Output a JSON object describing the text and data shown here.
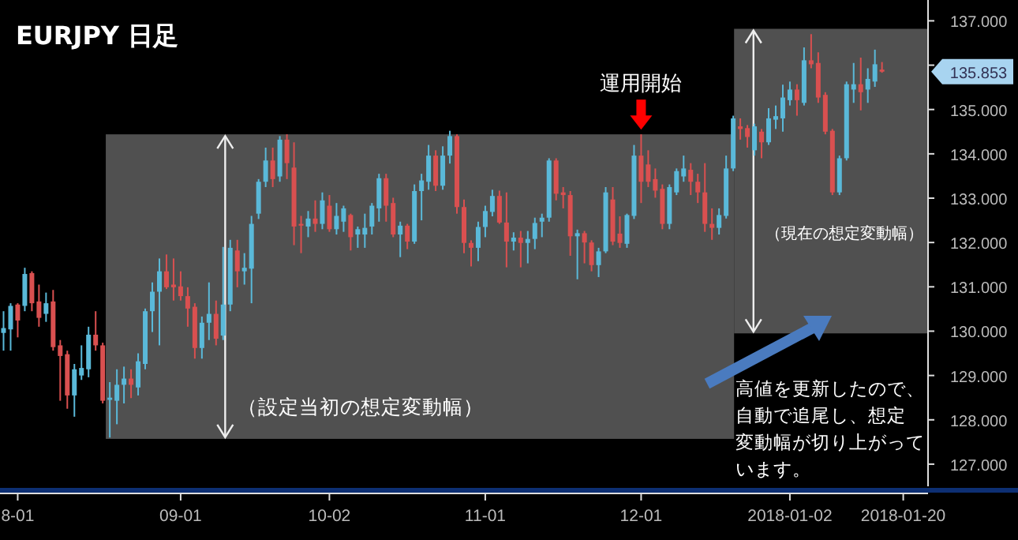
{
  "chart_data": {
    "type": "candlestick",
    "title": "EURJPY 日足",
    "categories": [
      null,
      null,
      "8-01",
      null,
      null,
      null,
      null,
      null,
      null,
      null,
      null,
      null,
      null,
      null,
      null,
      null,
      null,
      null,
      null,
      null,
      null,
      null,
      null,
      null,
      null,
      "09-01",
      null,
      null,
      null,
      null,
      null,
      null,
      null,
      null,
      null,
      null,
      null,
      null,
      null,
      null,
      null,
      null,
      null,
      null,
      null,
      null,
      "10-02",
      null,
      null,
      null,
      null,
      null,
      null,
      null,
      null,
      null,
      null,
      null,
      null,
      null,
      null,
      null,
      null,
      null,
      null,
      null,
      null,
      null,
      "11-01",
      null,
      null,
      null,
      null,
      null,
      null,
      null,
      null,
      null,
      null,
      null,
      null,
      null,
      null,
      null,
      null,
      null,
      null,
      null,
      null,
      null,
      "12-01",
      null,
      null,
      null,
      null,
      null,
      null,
      null,
      null,
      null,
      null,
      null,
      null,
      null,
      null,
      null,
      null,
      null,
      null,
      null,
      null,
      "2018-01-02",
      null,
      null,
      null,
      null,
      null,
      null,
      null,
      null,
      null,
      null,
      null,
      null,
      null,
      null,
      null,
      "2018-01-20",
      null,
      null,
      null
    ],
    "ohlc": [
      [
        129.96,
        130.45,
        129.56,
        130.07
      ],
      [
        130.04,
        130.63,
        129.56,
        130.57
      ],
      [
        130.6,
        130.63,
        129.86,
        130.24
      ],
      [
        130.57,
        131.43,
        130.45,
        131.29
      ],
      [
        131.31,
        131.35,
        130.45,
        130.63
      ],
      [
        130.67,
        131.05,
        130.1,
        130.3
      ],
      [
        130.39,
        130.87,
        130.21,
        130.63
      ],
      [
        130.67,
        130.93,
        129.56,
        129.64
      ],
      [
        129.68,
        129.8,
        128.43,
        129.44
      ],
      [
        129.48,
        129.56,
        128.25,
        128.55
      ],
      [
        128.55,
        129.26,
        128.07,
        129.14
      ],
      [
        129.0,
        129.68,
        128.9,
        129.17
      ],
      [
        129.14,
        130.1,
        128.96,
        129.92
      ],
      [
        129.92,
        130.45,
        129.56,
        129.68
      ],
      [
        129.68,
        129.74,
        128.37,
        128.43
      ],
      [
        128.45,
        128.85,
        127.6,
        128.5
      ],
      [
        128.43,
        129.14,
        127.9,
        128.79
      ],
      [
        128.79,
        129.2,
        128.37,
        128.93
      ],
      [
        128.93,
        129.14,
        128.49,
        128.79
      ],
      [
        128.73,
        129.5,
        128.55,
        129.32
      ],
      [
        129.26,
        130.51,
        129.14,
        130.45
      ],
      [
        130.45,
        131.1,
        129.98,
        130.89
      ],
      [
        130.89,
        131.64,
        129.68,
        131.35
      ],
      [
        131.35,
        131.73,
        130.95,
        130.99
      ],
      [
        131.05,
        131.64,
        130.69,
        130.99
      ],
      [
        131.01,
        131.35,
        130.69,
        130.79
      ],
      [
        130.79,
        130.99,
        130.1,
        130.51
      ],
      [
        130.55,
        130.63,
        129.38,
        129.62
      ],
      [
        129.62,
        130.33,
        129.38,
        130.19
      ],
      [
        130.19,
        131.1,
        129.8,
        130.39
      ],
      [
        130.39,
        130.69,
        129.68,
        129.83
      ],
      [
        129.9,
        131.9,
        129.8,
        130.6
      ],
      [
        130.6,
        132.06,
        130.45,
        131.88
      ],
      [
        131.82,
        132.06,
        130.99,
        131.35
      ],
      [
        131.35,
        131.76,
        131.05,
        131.43
      ],
      [
        131.41,
        132.6,
        130.63,
        132.42
      ],
      [
        132.65,
        133.43,
        132.53,
        133.37
      ],
      [
        133.37,
        134.14,
        133.25,
        133.85
      ],
      [
        133.85,
        134.14,
        133.25,
        133.43
      ],
      [
        133.49,
        134.4,
        133.37,
        134.32
      ],
      [
        134.32,
        134.44,
        133.43,
        133.79
      ],
      [
        133.69,
        134.26,
        131.94,
        132.36
      ],
      [
        132.42,
        132.6,
        131.76,
        132.38
      ],
      [
        132.36,
        132.71,
        132.12,
        132.54
      ],
      [
        132.54,
        132.95,
        132.24,
        132.42
      ],
      [
        132.42,
        133.13,
        132.3,
        132.95
      ],
      [
        132.83,
        133.07,
        132.24,
        132.3
      ],
      [
        132.3,
        132.89,
        132.18,
        132.6
      ],
      [
        132.47,
        132.83,
        132.24,
        132.77
      ],
      [
        132.62,
        132.65,
        131.82,
        132.12
      ],
      [
        132.18,
        132.36,
        131.88,
        132.3
      ],
      [
        132.18,
        132.65,
        131.88,
        132.33
      ],
      [
        132.36,
        132.89,
        132.18,
        132.83
      ],
      [
        132.77,
        133.55,
        132.47,
        133.45
      ],
      [
        133.45,
        133.55,
        132.47,
        132.83
      ],
      [
        132.89,
        133.01,
        132.12,
        132.18
      ],
      [
        132.18,
        132.47,
        131.67,
        132.38
      ],
      [
        132.38,
        132.42,
        131.85,
        132.02
      ],
      [
        132.02,
        133.31,
        131.97,
        133.16
      ],
      [
        133.16,
        133.55,
        132.5,
        133.4
      ],
      [
        133.37,
        134.2,
        133.19,
        133.96
      ],
      [
        133.96,
        134.08,
        133.16,
        133.28
      ],
      [
        133.28,
        134.17,
        133.19,
        133.96
      ],
      [
        133.96,
        134.52,
        133.78,
        134.4
      ],
      [
        134.4,
        134.44,
        132.65,
        132.8
      ],
      [
        132.8,
        132.97,
        131.76,
        131.99
      ],
      [
        131.99,
        132.05,
        131.46,
        131.88
      ],
      [
        131.88,
        132.47,
        131.58,
        132.35
      ],
      [
        132.35,
        132.83,
        132.12,
        132.71
      ],
      [
        132.69,
        133.19,
        132.59,
        133.05
      ],
      [
        133.05,
        133.17,
        132.42,
        132.45
      ],
      [
        132.45,
        133.13,
        131.44,
        132.02
      ],
      [
        132.02,
        132.23,
        131.82,
        132.11
      ],
      [
        132.11,
        132.26,
        131.44,
        131.99
      ],
      [
        131.99,
        132.26,
        131.53,
        132.08
      ],
      [
        132.08,
        132.56,
        131.85,
        132.44
      ],
      [
        132.47,
        132.65,
        132.12,
        132.56
      ],
      [
        132.56,
        133.9,
        132.47,
        133.85
      ],
      [
        133.85,
        133.9,
        132.95,
        133.1
      ],
      [
        133.13,
        133.25,
        132.77,
        133.07
      ],
      [
        133.07,
        133.16,
        131.7,
        132.14
      ],
      [
        132.14,
        132.29,
        131.17,
        132.21
      ],
      [
        132.21,
        132.26,
        131.53,
        132.0
      ],
      [
        132.0,
        132.05,
        131.35,
        131.49
      ],
      [
        131.49,
        131.88,
        131.22,
        131.8
      ],
      [
        131.8,
        133.25,
        131.76,
        133.13
      ],
      [
        132.97,
        133.25,
        131.94,
        132.02
      ],
      [
        132.2,
        132.59,
        131.88,
        131.99
      ],
      [
        131.97,
        132.65,
        131.88,
        132.62
      ],
      [
        132.6,
        134.2,
        132.53,
        133.96
      ],
      [
        133.96,
        134.44,
        132.89,
        133.37
      ],
      [
        133.76,
        134.08,
        133.25,
        133.37
      ],
      [
        133.43,
        133.67,
        133.01,
        133.17
      ],
      [
        133.21,
        133.31,
        132.3,
        132.42
      ],
      [
        132.42,
        133.31,
        132.3,
        133.25
      ],
      [
        133.13,
        133.67,
        133.07,
        133.61
      ],
      [
        133.49,
        133.96,
        133.37,
        133.67
      ],
      [
        133.64,
        133.79,
        133.07,
        133.37
      ],
      [
        133.37,
        133.55,
        132.89,
        133.13
      ],
      [
        133.13,
        133.79,
        132.24,
        132.42
      ],
      [
        132.42,
        132.77,
        132.06,
        132.33
      ],
      [
        132.33,
        132.77,
        132.18,
        132.62
      ],
      [
        132.6,
        133.96,
        132.54,
        133.67
      ],
      [
        133.67,
        134.86,
        133.61,
        134.8
      ],
      [
        134.62,
        134.8,
        134.32,
        134.56
      ],
      [
        134.58,
        134.65,
        134.14,
        134.38
      ],
      [
        134.08,
        134.68,
        133.96,
        134.62
      ],
      [
        134.5,
        134.56,
        133.9,
        134.26
      ],
      [
        134.26,
        135.03,
        134.2,
        134.8
      ],
      [
        134.77,
        135.09,
        134.56,
        134.85
      ],
      [
        134.8,
        135.56,
        134.5,
        135.27
      ],
      [
        135.21,
        135.63,
        135.09,
        135.45
      ],
      [
        135.45,
        135.57,
        134.86,
        135.21
      ],
      [
        135.15,
        136.4,
        135.09,
        136.11
      ],
      [
        136.11,
        136.7,
        135.93,
        136.02
      ],
      [
        136.05,
        136.29,
        135.15,
        135.27
      ],
      [
        135.33,
        135.39,
        134.44,
        134.5
      ],
      [
        134.52,
        134.56,
        133.07,
        133.13
      ],
      [
        133.13,
        133.96,
        133.07,
        133.9
      ],
      [
        133.9,
        135.63,
        133.85,
        135.57
      ],
      [
        135.45,
        136.05,
        135.15,
        135.57
      ],
      [
        135.57,
        136.17,
        134.98,
        135.39
      ],
      [
        135.45,
        135.93,
        135.15,
        135.69
      ],
      [
        135.63,
        136.35,
        135.51,
        136.02
      ],
      [
        135.9,
        136.07,
        135.83,
        135.853
      ],
      null,
      null,
      null,
      null,
      null,
      null
    ],
    "colors": [
      "#5ab9d9",
      "#5ab9d9",
      "#d95050",
      "#5ab9d9",
      "#d95050",
      "#d95050",
      "#5ab9d9",
      "#d95050",
      "#d95050",
      "#d95050",
      "#5ab9d9",
      "#5ab9d9",
      "#5ab9d9",
      "#d95050",
      "#d95050",
      "#5ab9d9",
      "#5ab9d9",
      "#5ab9d9",
      "#d95050",
      "#5ab9d9",
      "#5ab9d9",
      "#5ab9d9",
      "#5ab9d9",
      "#d95050",
      "#d95050",
      "#d95050",
      "#d95050",
      "#d95050",
      "#5ab9d9",
      "#5ab9d9",
      "#d95050",
      "#5ab9d9",
      "#5ab9d9",
      "#d95050",
      "#5ab9d9",
      "#5ab9d9",
      "#5ab9d9",
      "#5ab9d9",
      "#d95050",
      "#5ab9d9",
      "#d95050",
      "#d95050",
      "#d95050",
      "#5ab9d9",
      "#d95050",
      "#5ab9d9",
      "#d95050",
      "#5ab9d9",
      "#5ab9d9",
      "#d95050",
      "#5ab9d9",
      "#5ab9d9",
      "#5ab9d9",
      "#5ab9d9",
      "#d95050",
      "#d95050",
      "#5ab9d9",
      "#d95050",
      "#5ab9d9",
      "#5ab9d9",
      "#5ab9d9",
      "#d95050",
      "#5ab9d9",
      "#5ab9d9",
      "#d95050",
      "#d95050",
      "#d95050",
      "#5ab9d9",
      "#5ab9d9",
      "#5ab9d9",
      "#d95050",
      "#d95050",
      "#5ab9d9",
      "#d95050",
      "#5ab9d9",
      "#5ab9d9",
      "#5ab9d9",
      "#5ab9d9",
      "#d95050",
      "#d95050",
      "#d95050",
      "#5ab9d9",
      "#d95050",
      "#d95050",
      "#5ab9d9",
      "#5ab9d9",
      "#d95050",
      "#d95050",
      "#5ab9d9",
      "#5ab9d9",
      "#d95050",
      "#d95050",
      "#d95050",
      "#d95050",
      "#5ab9d9",
      "#5ab9d9",
      "#5ab9d9",
      "#d95050",
      "#d95050",
      "#d95050",
      "#d95050",
      "#5ab9d9",
      "#5ab9d9",
      "#5ab9d9",
      "#d95050",
      "#d95050",
      "#5ab9d9",
      "#d95050",
      "#5ab9d9",
      "#5ab9d9",
      "#5ab9d9",
      "#5ab9d9",
      "#d95050",
      "#5ab9d9",
      "#d95050",
      "#d95050",
      "#d95050",
      "#d95050",
      "#5ab9d9",
      "#5ab9d9",
      "#5ab9d9",
      "#d95050",
      "#5ab9d9",
      "#5ab9d9",
      "#d95050",
      null,
      null,
      null,
      null,
      null,
      null
    ],
    "ylim": [
      126.5,
      137.47
    ],
    "yticks": [
      {
        "value": 127,
        "label": "127.000"
      },
      {
        "value": 128,
        "label": "128.000"
      },
      {
        "value": 129,
        "label": "129.000"
      },
      {
        "value": 130,
        "label": "130.000"
      },
      {
        "value": 131,
        "label": "131.000"
      },
      {
        "value": 132,
        "label": "132.000"
      },
      {
        "value": 133,
        "label": "133.000"
      },
      {
        "value": 134,
        "label": "134.000"
      },
      {
        "value": 135,
        "label": "135.000"
      },
      {
        "value": 136,
        "label": null
      },
      {
        "value": 137,
        "label": "137.000"
      }
    ],
    "bands": [
      {
        "axis": "y",
        "from": 127.57,
        "to": 134.44,
        "color": "#505050",
        "label": "（設定当初の想定変動幅）"
      },
      {
        "axis": "y",
        "from": 129.95,
        "to": 136.82,
        "color": "#505050",
        "label": "（現在の想定変動幅）"
      }
    ],
    "annotations": [
      {
        "text": "運用開始",
        "x": "12-01",
        "y": 134.44
      },
      "135.853",
      "高値を更新したので、自動で追尾し、想定変動幅が切り上がっています。"
    ]
  }
}
